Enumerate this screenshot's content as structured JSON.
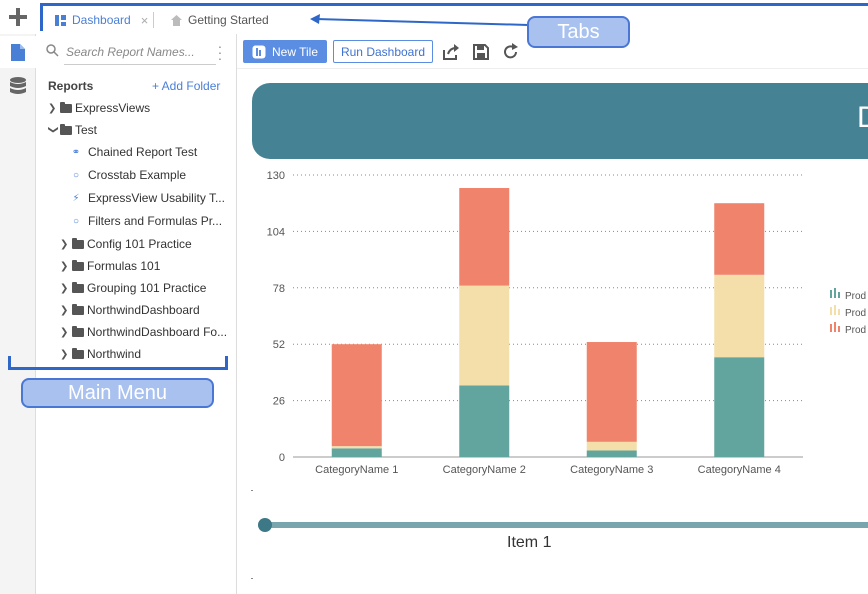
{
  "tabs": [
    {
      "label": "Dashboard",
      "active": true
    },
    {
      "label": "Getting Started",
      "active": false
    }
  ],
  "sidebar": {
    "search_placeholder": "Search Report Names...",
    "header": "Reports",
    "add_folder": "+ Add Folder",
    "tree": [
      {
        "label": "ExpressViews",
        "kind": "folder",
        "expanded": false,
        "level": 0
      },
      {
        "label": "Test",
        "kind": "folder",
        "expanded": true,
        "level": 0
      },
      {
        "label": "Chained Report Test",
        "kind": "report",
        "icon": "chain-icon",
        "level": 1
      },
      {
        "label": "Crosstab Example",
        "kind": "report",
        "icon": "circle-icon",
        "level": 1
      },
      {
        "label": "ExpressView Usability T...",
        "kind": "report",
        "icon": "bolt-icon",
        "level": 1
      },
      {
        "label": "Filters and Formulas Pr...",
        "kind": "report",
        "icon": "circle-icon",
        "level": 1
      },
      {
        "label": "Config 101 Practice",
        "kind": "folder",
        "expanded": false,
        "level": 1
      },
      {
        "label": "Formulas 101",
        "kind": "folder",
        "expanded": false,
        "level": 1
      },
      {
        "label": "Grouping 101 Practice",
        "kind": "folder",
        "expanded": false,
        "level": 1
      },
      {
        "label": "NorthwindDashboard",
        "kind": "folder",
        "expanded": false,
        "level": 1
      },
      {
        "label": "NorthwindDashboard Fo...",
        "kind": "folder",
        "expanded": false,
        "level": 1
      },
      {
        "label": "Northwind",
        "kind": "folder",
        "expanded": false,
        "level": 1
      }
    ]
  },
  "toolbar": {
    "new_tile": "New Tile",
    "run_dashboard": "Run Dashboard"
  },
  "dashboard": {
    "banner_title": "D",
    "slider_label": "Item 1"
  },
  "annotations": {
    "tabs": "Tabs",
    "main_menu": "Main Menu"
  },
  "colors": {
    "accent": "#4a7fd6",
    "banner": "#458394",
    "series1": "#62a59f",
    "series2": "#f4dfab",
    "series3": "#f0836b"
  },
  "chart_data": {
    "type": "bar",
    "stacked": true,
    "categories": [
      "CategoryName 1",
      "CategoryName 2",
      "CategoryName 3",
      "CategoryName 4"
    ],
    "ylim": [
      0,
      130
    ],
    "yticks": [
      0,
      26,
      52,
      78,
      104,
      130
    ],
    "grid": true,
    "legend_position": "right",
    "legend": [
      "Prod",
      "Prod",
      "Prod"
    ],
    "series": [
      {
        "values": [
          4,
          33,
          3,
          46
        ],
        "color": "#62a59f"
      },
      {
        "values": [
          1,
          46,
          4,
          38
        ],
        "color": "#f4dfab"
      },
      {
        "values": [
          47,
          45,
          46,
          33
        ],
        "color": "#f0836b"
      }
    ]
  }
}
